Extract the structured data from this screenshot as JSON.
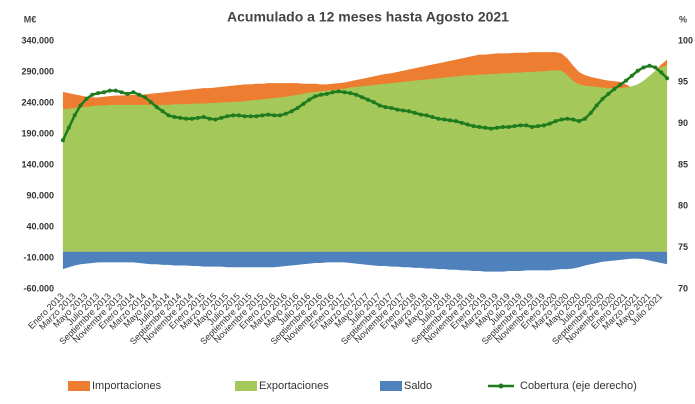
{
  "chart_data": {
    "type": "area",
    "title": "Acumulado a 12 meses hasta Agosto 2021",
    "y_label": "M€",
    "y2_label": "%",
    "categories": [
      "Enero 2013",
      null,
      "Marzo 2013",
      null,
      "Mayo 2013",
      null,
      "Julio 2013",
      null,
      "Septiembre 2013",
      null,
      "Noviembre 2013",
      null,
      "Enero 2014",
      null,
      "Marzo 2014",
      null,
      "Mayo 2014",
      null,
      "Julio 2014",
      null,
      "Septiembre 2014",
      null,
      "Noviembre 2014",
      null,
      "Enero 2015",
      null,
      "Marzo 2015",
      null,
      "Mayo 2015",
      null,
      "Julio 2015",
      null,
      "Septiembre 2015",
      null,
      "Noviembre 2015",
      null,
      "Enero 2016",
      null,
      "Marzo 2016",
      null,
      "Mayo 2016",
      null,
      "Julio 2016",
      null,
      "Septiembre 2016",
      null,
      "Noviembre 2016",
      null,
      "Enero 2017",
      null,
      "Marzo 2017",
      null,
      "Mayo 2017",
      null,
      "Julio 2017",
      null,
      "Septiembre 2017",
      null,
      "Noviembre 2017",
      null,
      "Enero 2018",
      null,
      "Marzo 2018",
      null,
      "Mayo 2018",
      null,
      "Julio 2018",
      null,
      "Septiembre 2018",
      null,
      "Noviembre 2018",
      null,
      "Enero 2019",
      null,
      "Marzo 2019",
      null,
      "Mayo 2019",
      null,
      "Julio 2019",
      null,
      "Septiembre 2019",
      null,
      "Noviembre 2019",
      null,
      "Enero 2020",
      null,
      "Marzo 2020",
      null,
      "Mayo 2020",
      null,
      "Julio 2020",
      null,
      "Septiembre 2020",
      null,
      "Noviembre 2020",
      null,
      "Enero 2021",
      null,
      "Marzo 2021",
      null,
      "Mayo 2021",
      null,
      "Julio 2021",
      null
    ],
    "series": [
      {
        "name": "Importaciones",
        "color": "#ed7d31",
        "values": [
          258000,
          256000,
          254000,
          252000,
          250000,
          249000,
          249000,
          250000,
          251000,
          252000,
          252000,
          253000,
          253000,
          253000,
          254000,
          255000,
          256000,
          257000,
          258000,
          259000,
          260000,
          261000,
          262000,
          263000,
          264000,
          264000,
          265000,
          266000,
          267000,
          268000,
          269000,
          270000,
          270000,
          271000,
          271000,
          272000,
          272000,
          272000,
          272000,
          272000,
          272000,
          271000,
          271000,
          271000,
          270000,
          270000,
          271000,
          272000,
          273000,
          275000,
          277000,
          279000,
          281000,
          283000,
          285000,
          287000,
          288000,
          290000,
          292000,
          294000,
          296000,
          298000,
          300000,
          302000,
          304000,
          306000,
          308000,
          310000,
          312000,
          314000,
          316000,
          318000,
          318000,
          319000,
          320000,
          320000,
          320000,
          321000,
          321000,
          321000,
          322000,
          322000,
          322000,
          322000,
          322000,
          320000,
          312000,
          300000,
          290000,
          285000,
          282000,
          280000,
          278000,
          276000,
          275000,
          274000,
          270000,
          265000,
          262000,
          268000,
          280000,
          292000,
          302000,
          310000
        ]
      },
      {
        "name": "Exportaciones",
        "color": "#a5c85a",
        "values": [
          230000,
          231000,
          232000,
          233000,
          234000,
          235000,
          236000,
          236000,
          237000,
          237000,
          237000,
          237000,
          237000,
          237000,
          237000,
          237000,
          237000,
          237000,
          237000,
          238000,
          238000,
          238000,
          239000,
          239000,
          239000,
          240000,
          240000,
          241000,
          241000,
          242000,
          242000,
          243000,
          244000,
          245000,
          246000,
          247000,
          248000,
          249000,
          250000,
          252000,
          253000,
          255000,
          257000,
          258000,
          259000,
          260000,
          261000,
          262000,
          263000,
          265000,
          266000,
          267000,
          268000,
          269000,
          270000,
          271000,
          272000,
          273000,
          274000,
          275000,
          276000,
          277000,
          278000,
          279000,
          280000,
          281000,
          282000,
          283000,
          284000,
          285000,
          285000,
          286000,
          286000,
          287000,
          287000,
          288000,
          288000,
          289000,
          289000,
          290000,
          290000,
          291000,
          291000,
          292000,
          293000,
          292000,
          285000,
          275000,
          270000,
          268000,
          267000,
          266000,
          265000,
          264000,
          264000,
          264000,
          265000,
          267000,
          270000,
          276000,
          284000,
          292000,
          298000,
          300000
        ]
      },
      {
        "name": "Saldo",
        "color": "#4f81bd",
        "values": [
          -28000,
          -25000,
          -22000,
          -20000,
          -19000,
          -18000,
          -17000,
          -17000,
          -17000,
          -17000,
          -17000,
          -17000,
          -17000,
          -18000,
          -19000,
          -20000,
          -20000,
          -21000,
          -21000,
          -22000,
          -22000,
          -22000,
          -23000,
          -23000,
          -24000,
          -24000,
          -24000,
          -24000,
          -25000,
          -25000,
          -25000,
          -25000,
          -25000,
          -25000,
          -25000,
          -25000,
          -25000,
          -24000,
          -23000,
          -22000,
          -21000,
          -20000,
          -19000,
          -18000,
          -18000,
          -17000,
          -17000,
          -17000,
          -17000,
          -18000,
          -19000,
          -20000,
          -21000,
          -22000,
          -23000,
          -23000,
          -24000,
          -24000,
          -25000,
          -25000,
          -26000,
          -26000,
          -27000,
          -27000,
          -28000,
          -28000,
          -29000,
          -29000,
          -30000,
          -30000,
          -31000,
          -31000,
          -32000,
          -32000,
          -32000,
          -32000,
          -31000,
          -31000,
          -31000,
          -30000,
          -30000,
          -30000,
          -30000,
          -30000,
          -29000,
          -28000,
          -28000,
          -27000,
          -25000,
          -22000,
          -20000,
          -18000,
          -16000,
          -15000,
          -14000,
          -13000,
          -12000,
          -11000,
          -11000,
          -12000,
          -14000,
          -16000,
          -18000,
          -20000
        ]
      },
      {
        "name": "Cobertura (eje derecho)",
        "color": "#1e7b1e",
        "axis": "y2",
        "values": [
          88,
          89.5,
          91,
          92.2,
          93,
          93.5,
          93.7,
          93.8,
          94,
          94,
          93.8,
          93.6,
          93.8,
          93.5,
          93.2,
          92.6,
          92,
          91.5,
          91,
          90.8,
          90.7,
          90.6,
          90.6,
          90.7,
          90.8,
          90.6,
          90.5,
          90.7,
          90.9,
          91,
          91,
          90.9,
          90.9,
          90.9,
          91,
          91.1,
          91,
          91,
          91.2,
          91.5,
          91.9,
          92.4,
          92.9,
          93.3,
          93.5,
          93.6,
          93.8,
          93.9,
          93.8,
          93.7,
          93.5,
          93.2,
          92.9,
          92.6,
          92.2,
          92,
          91.9,
          91.7,
          91.6,
          91.5,
          91.3,
          91.1,
          91,
          90.8,
          90.6,
          90.5,
          90.4,
          90.3,
          90.1,
          89.9,
          89.7,
          89.6,
          89.5,
          89.4,
          89.5,
          89.6,
          89.6,
          89.7,
          89.8,
          89.8,
          89.6,
          89.7,
          89.8,
          90,
          90.3,
          90.5,
          90.6,
          90.5,
          90.3,
          90.6,
          91.3,
          92.2,
          93,
          93.6,
          94.2,
          94.7,
          95.2,
          95.8,
          96.4,
          96.8,
          97,
          96.8,
          96.2,
          95.5
        ]
      }
    ],
    "ylim": [
      -60000,
      340000
    ],
    "yticks": [
      {
        "value": -60000,
        "label": "-60.000"
      },
      {
        "value": -10000,
        "label": "-10.000"
      },
      {
        "value": 40000,
        "label": "40.000"
      },
      {
        "value": 90000,
        "label": "90.000"
      },
      {
        "value": 140000,
        "label": "140.000"
      },
      {
        "value": 190000,
        "label": "190.000"
      },
      {
        "value": 240000,
        "label": "240.000"
      },
      {
        "value": 290000,
        "label": "290.000"
      },
      {
        "value": 340000,
        "label": "340.000"
      }
    ],
    "y2lim": [
      70,
      100
    ],
    "y2ticks": [
      70,
      75,
      80,
      85,
      90,
      95,
      100
    ],
    "grid": false,
    "legend": "bottom"
  }
}
